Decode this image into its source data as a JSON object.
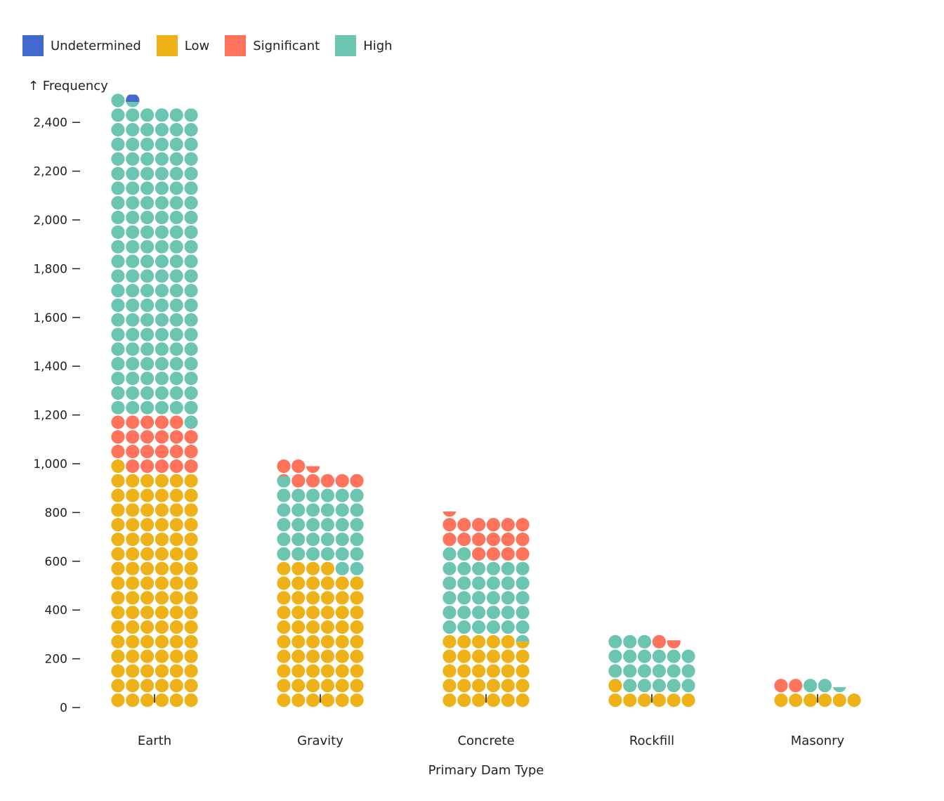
{
  "chart_data": {
    "type": "waffle",
    "xlabel": "Primary Dam Type",
    "ylabel": "↑ Frequency",
    "ylim": [
      0,
      2480
    ],
    "yticks": [
      0,
      200,
      400,
      600,
      800,
      1000,
      1200,
      1400,
      1600,
      1800,
      2000,
      2200,
      2400
    ],
    "ytick_labels": [
      "0",
      "200",
      "400",
      "600",
      "800",
      "1,000",
      "1,200",
      "1,400",
      "1,600",
      "1,800",
      "2,000",
      "2,200",
      "2,400"
    ],
    "unit_per_cell": 10,
    "cells_per_row": 6,
    "legend_position": "top-left",
    "legend": [
      {
        "name": "Undetermined",
        "color": "#4269d0"
      },
      {
        "name": "Low",
        "color": "#efb118"
      },
      {
        "name": "Significant",
        "color": "#ff725c"
      },
      {
        "name": "High",
        "color": "#6cc5b0"
      }
    ],
    "categories": [
      {
        "name": "Earth",
        "segments": [
          {
            "series": "Low",
            "value": 970
          },
          {
            "series": "Significant",
            "value": 221
          },
          {
            "series": "High",
            "value": 1283
          },
          {
            "series": "Undetermined",
            "value": 5
          }
        ]
      },
      {
        "name": "Gravity",
        "segments": [
          {
            "series": "Low",
            "value": 580
          },
          {
            "series": "High",
            "value": 328
          },
          {
            "series": "Significant",
            "value": 77
          }
        ]
      },
      {
        "name": "Concrete",
        "segments": [
          {
            "series": "Low",
            "value": 295
          },
          {
            "series": "High",
            "value": 325
          },
          {
            "series": "Significant",
            "value": 164
          }
        ]
      },
      {
        "name": "Rockfill",
        "segments": [
          {
            "series": "Low",
            "value": 69
          },
          {
            "series": "High",
            "value": 201
          },
          {
            "series": "Significant",
            "value": 16
          }
        ]
      },
      {
        "name": "Masonry",
        "segments": [
          {
            "series": "Low",
            "value": 60
          },
          {
            "series": "Significant",
            "value": 20
          },
          {
            "series": "High",
            "value": 24
          }
        ]
      }
    ]
  }
}
